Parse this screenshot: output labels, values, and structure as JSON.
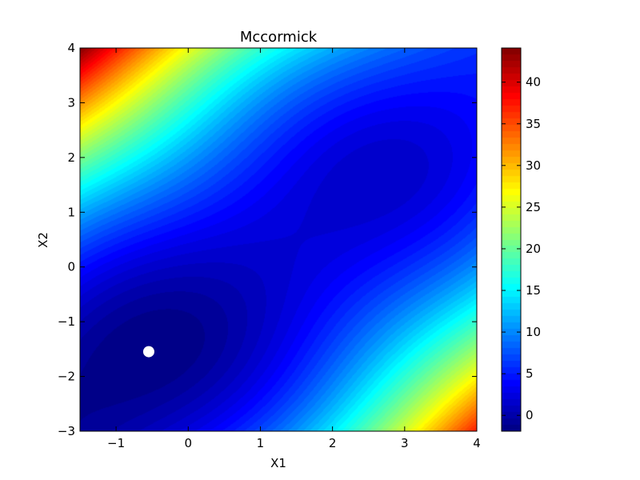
{
  "chart_data": {
    "type": "heatmap",
    "title": "Mccormick",
    "xlabel": "X1",
    "ylabel": "X2",
    "function": "sin(x1 + x2) + (x1 - x2)^2 - 1.5*x1 + 2.5*x2 + 1",
    "xlim": [
      -1.5,
      4
    ],
    "ylim": [
      -3,
      4
    ],
    "xticks": [
      -1,
      0,
      1,
      2,
      3,
      4
    ],
    "xtick_labels": [
      "−1",
      "0",
      "1",
      "2",
      "3",
      "4"
    ],
    "yticks": [
      -3,
      -2,
      -1,
      0,
      1,
      2,
      3,
      4
    ],
    "ytick_labels": [
      "−3",
      "−2",
      "−1",
      "0",
      "1",
      "2",
      "3",
      "4"
    ],
    "colormap": "jet",
    "color_range": [
      -1.9,
      44.1
    ],
    "colorbar_ticks": [
      0,
      5,
      10,
      15,
      20,
      25,
      30,
      35,
      40
    ],
    "colorbar_tick_labels": [
      "0",
      "5",
      "10",
      "15",
      "20",
      "25",
      "30",
      "35",
      "40"
    ],
    "marker": {
      "x": -0.547,
      "y": -1.547,
      "color": "#ffffff"
    },
    "grid": false
  }
}
